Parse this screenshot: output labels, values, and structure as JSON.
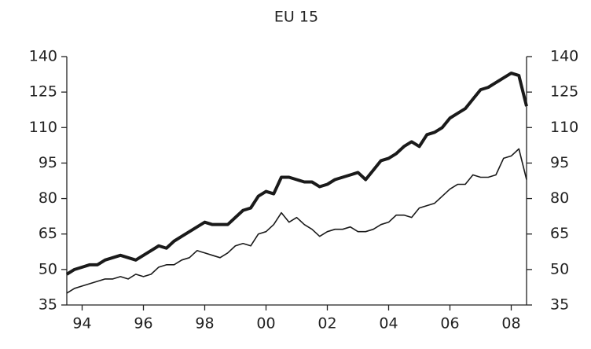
{
  "chart_data": {
    "type": "line",
    "title": "EU 15",
    "categories": [
      null,
      null,
      "94",
      null,
      null,
      null,
      null,
      null,
      null,
      null,
      "96",
      null,
      null,
      null,
      null,
      null,
      null,
      null,
      "98",
      null,
      null,
      null,
      null,
      null,
      null,
      null,
      "00",
      null,
      null,
      null,
      null,
      null,
      null,
      null,
      "02",
      null,
      null,
      null,
      null,
      null,
      null,
      null,
      "04",
      null,
      null,
      null,
      null,
      null,
      null,
      null,
      "06",
      null,
      null,
      null,
      null,
      null,
      null,
      null,
      "08",
      null,
      null
    ],
    "series": [
      {
        "color": "#1a1a1a",
        "width": 4,
        "values": [
          48,
          50,
          51,
          52,
          52,
          54,
          55,
          56,
          55,
          54,
          56,
          58,
          60,
          59,
          62,
          64,
          66,
          68,
          70,
          69,
          69,
          69,
          72,
          75,
          76,
          81,
          83,
          82,
          89,
          89,
          88,
          87,
          87,
          85,
          86,
          88,
          89,
          90,
          91,
          88,
          92,
          96,
          97,
          99,
          102,
          104,
          102,
          107,
          108,
          110,
          114,
          116,
          118,
          122,
          126,
          127,
          129,
          131,
          133,
          132,
          119
        ]
      },
      {
        "color": "#1a1a1a",
        "width": 1.6,
        "values": [
          40,
          42,
          43,
          44,
          45,
          46,
          46,
          47,
          46,
          48,
          47,
          48,
          51,
          52,
          52,
          54,
          55,
          58,
          57,
          56,
          55,
          57,
          60,
          61,
          60,
          65,
          66,
          69,
          74,
          70,
          72,
          69,
          67,
          64,
          66,
          67,
          67,
          68,
          66,
          66,
          67,
          69,
          70,
          73,
          73,
          72,
          76,
          77,
          78,
          81,
          84,
          86,
          86,
          90,
          89,
          89,
          90,
          97,
          98,
          101,
          88
        ]
      }
    ],
    "ylim": [
      35,
      140
    ],
    "yticks": [
      35,
      50,
      65,
      80,
      95,
      110,
      125,
      140
    ],
    "y2lim": [
      35,
      140
    ],
    "y2ticks": [
      35,
      50,
      65,
      80,
      95,
      110,
      125,
      140
    ]
  }
}
